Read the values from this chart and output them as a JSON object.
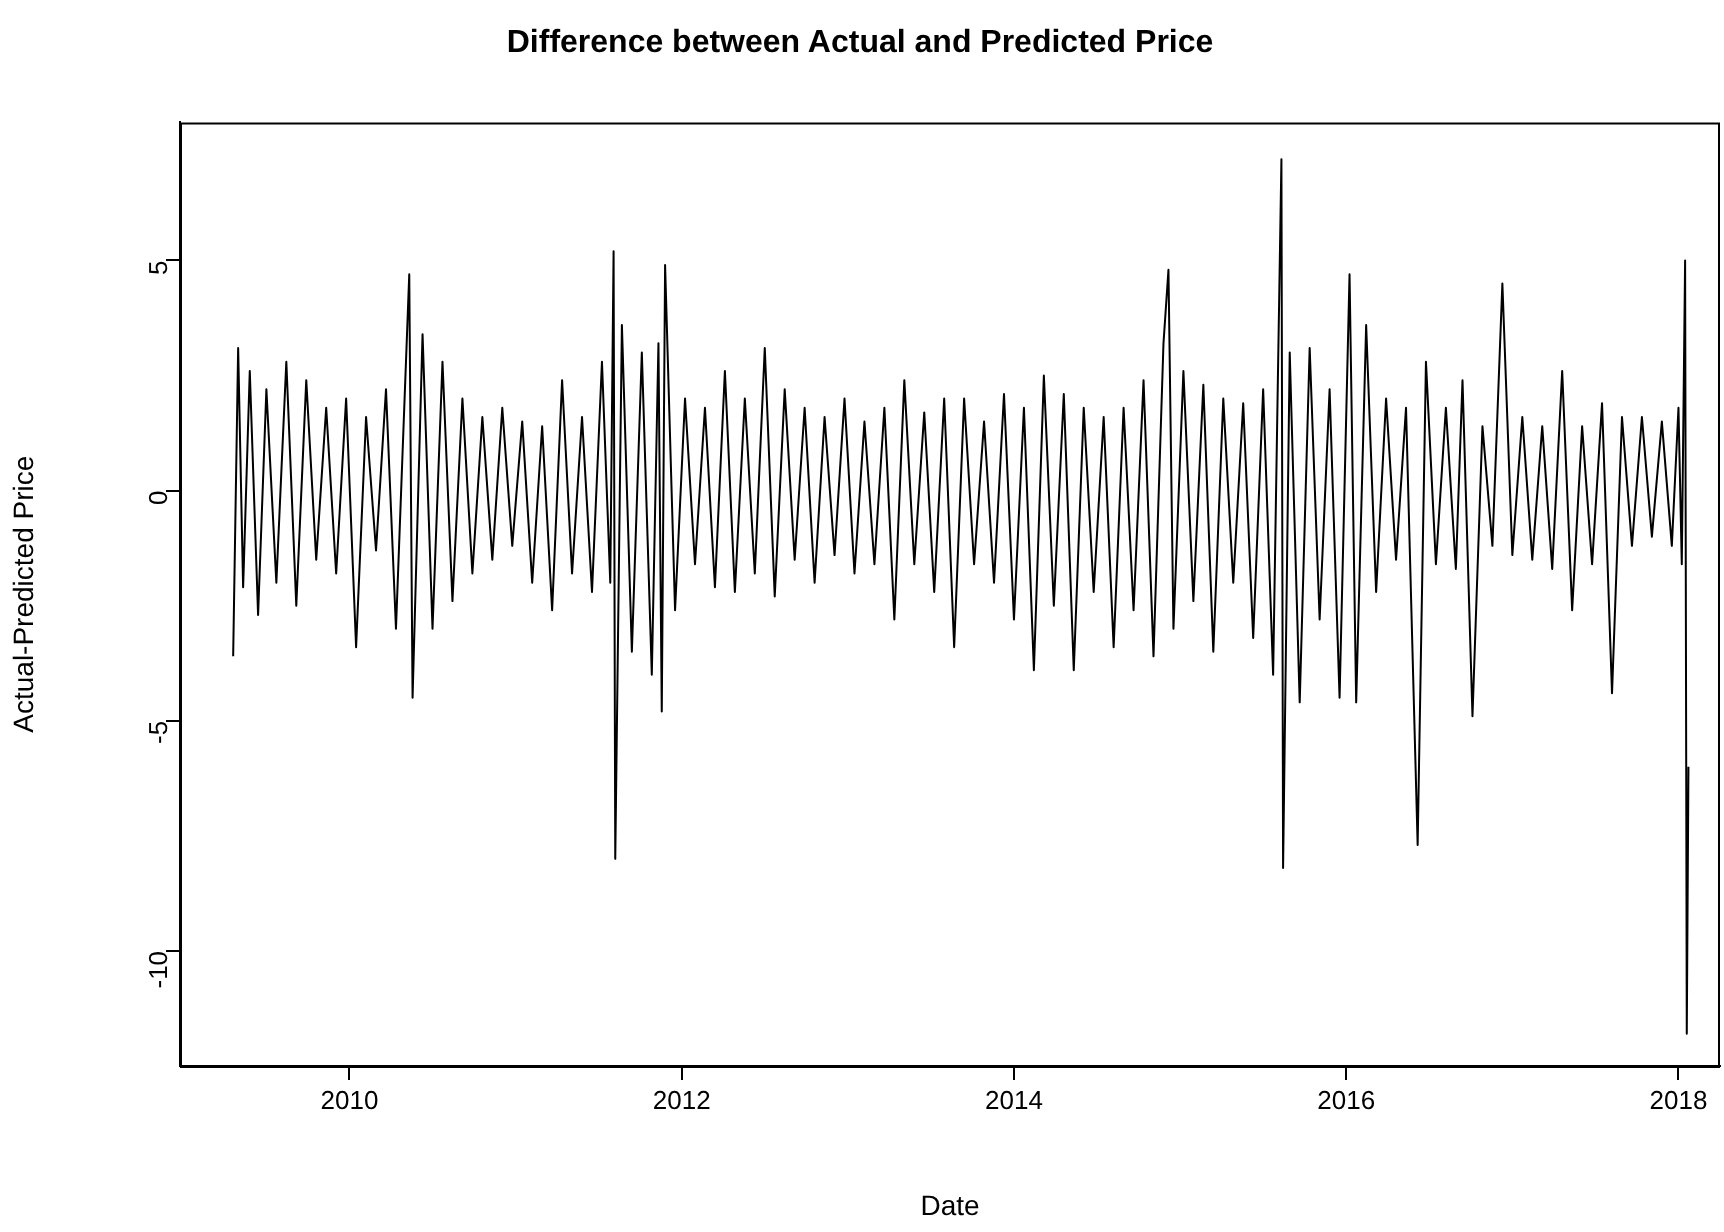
{
  "chart_data": {
    "type": "line",
    "title": "Difference between Actual and Predicted Price",
    "xlabel": "Date",
    "ylabel": "Actual-Predicted Price",
    "xlim": [
      2008.98,
      2018.25
    ],
    "xticks": [
      2010,
      2012,
      2014,
      2016,
      2018
    ],
    "ylim": [
      -12.5,
      8.0
    ],
    "yticks": [
      -10,
      -5,
      0,
      5
    ],
    "series": [
      {
        "color": "#000000",
        "x": [
          2009.3,
          2009.33,
          2009.36,
          2009.4,
          2009.45,
          2009.5,
          2009.56,
          2009.62,
          2009.68,
          2009.74,
          2009.8,
          2009.86,
          2009.92,
          2009.98,
          2010.04,
          2010.1,
          2010.16,
          2010.22,
          2010.28,
          2010.36,
          2010.38,
          2010.44,
          2010.5,
          2010.56,
          2010.62,
          2010.68,
          2010.74,
          2010.8,
          2010.86,
          2010.92,
          2010.98,
          2011.04,
          2011.1,
          2011.16,
          2011.22,
          2011.28,
          2011.34,
          2011.4,
          2011.46,
          2011.52,
          2011.57,
          2011.59,
          2011.6,
          2011.64,
          2011.7,
          2011.76,
          2011.82,
          2011.86,
          2011.88,
          2011.9,
          2011.96,
          2012.02,
          2012.08,
          2012.14,
          2012.2,
          2012.26,
          2012.32,
          2012.38,
          2012.44,
          2012.5,
          2012.56,
          2012.62,
          2012.68,
          2012.74,
          2012.8,
          2012.86,
          2012.92,
          2012.98,
          2013.04,
          2013.1,
          2013.16,
          2013.22,
          2013.28,
          2013.34,
          2013.4,
          2013.46,
          2013.52,
          2013.58,
          2013.64,
          2013.7,
          2013.76,
          2013.82,
          2013.88,
          2013.94,
          2014.0,
          2014.06,
          2014.12,
          2014.18,
          2014.24,
          2014.3,
          2014.36,
          2014.42,
          2014.48,
          2014.54,
          2014.6,
          2014.66,
          2014.72,
          2014.78,
          2014.84,
          2014.9,
          2014.93,
          2014.96,
          2015.02,
          2015.08,
          2015.14,
          2015.2,
          2015.26,
          2015.32,
          2015.38,
          2015.44,
          2015.5,
          2015.56,
          2015.61,
          2015.62,
          2015.66,
          2015.72,
          2015.78,
          2015.84,
          2015.9,
          2015.96,
          2016.02,
          2016.06,
          2016.12,
          2016.18,
          2016.24,
          2016.3,
          2016.36,
          2016.43,
          2016.48,
          2016.54,
          2016.6,
          2016.66,
          2016.7,
          2016.76,
          2016.82,
          2016.88,
          2016.94,
          2017.0,
          2017.06,
          2017.12,
          2017.18,
          2017.24,
          2017.3,
          2017.36,
          2017.42,
          2017.48,
          2017.54,
          2017.6,
          2017.66,
          2017.72,
          2017.78,
          2017.84,
          2017.9,
          2017.96,
          2018.0,
          2018.02,
          2018.04,
          2018.05,
          2018.06
        ],
        "values": [
          -3.6,
          3.1,
          -2.1,
          2.6,
          -2.7,
          2.2,
          -2.0,
          2.8,
          -2.5,
          2.4,
          -1.5,
          1.8,
          -1.8,
          2.0,
          -3.4,
          1.6,
          -1.3,
          2.2,
          -3.0,
          4.7,
          -4.5,
          3.4,
          -3.0,
          2.8,
          -2.4,
          2.0,
          -1.8,
          1.6,
          -1.5,
          1.8,
          -1.2,
          1.5,
          -2.0,
          1.4,
          -2.6,
          2.4,
          -1.8,
          1.6,
          -2.2,
          2.8,
          -2.0,
          5.2,
          -8.0,
          3.6,
          -3.5,
          3.0,
          -4.0,
          3.2,
          -4.8,
          4.9,
          -2.6,
          2.0,
          -1.6,
          1.8,
          -2.1,
          2.6,
          -2.2,
          2.0,
          -1.8,
          3.1,
          -2.3,
          2.2,
          -1.5,
          1.8,
          -2.0,
          1.6,
          -1.4,
          2.0,
          -1.8,
          1.5,
          -1.6,
          1.8,
          -2.8,
          2.4,
          -1.6,
          1.7,
          -2.2,
          2.0,
          -3.4,
          2.0,
          -1.6,
          1.5,
          -2.0,
          2.1,
          -2.8,
          1.8,
          -3.9,
          2.5,
          -2.5,
          2.1,
          -3.9,
          1.8,
          -2.2,
          1.6,
          -3.4,
          1.8,
          -2.6,
          2.4,
          -3.6,
          3.2,
          4.8,
          -3.0,
          2.6,
          -2.4,
          2.3,
          -3.5,
          2.0,
          -2.0,
          1.9,
          -3.2,
          2.2,
          -4.0,
          7.2,
          -8.2,
          3.0,
          -4.6,
          3.1,
          -2.8,
          2.2,
          -4.5,
          4.7,
          -4.6,
          3.6,
          -2.2,
          2.0,
          -1.5,
          1.8,
          -7.7,
          2.8,
          -1.6,
          1.8,
          -1.7,
          2.4,
          -4.9,
          1.4,
          -1.2,
          4.5,
          -1.4,
          1.6,
          -1.5,
          1.4,
          -1.7,
          2.6,
          -2.6,
          1.4,
          -1.6,
          1.9,
          -4.4,
          1.6,
          -1.2,
          1.6,
          -1.0,
          1.5,
          -1.2,
          1.8,
          -1.6,
          5.0,
          -11.8,
          -6.0
        ]
      }
    ]
  }
}
